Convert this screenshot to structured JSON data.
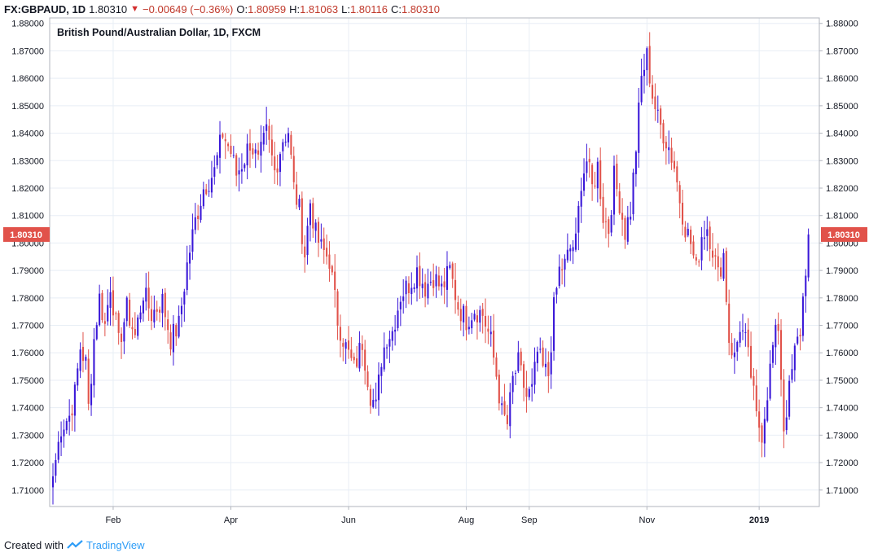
{
  "header": {
    "symbol": "FX:GBPAUD, 1D",
    "last": "1.80310",
    "change": "−0.00649 (−0.36%)",
    "o_label": "O:",
    "o_value": "1.80959",
    "h_label": "H:",
    "h_value": "1.81063",
    "l_label": "L:",
    "l_value": "1.80116",
    "c_label": "C:",
    "c_value": "1.80310"
  },
  "chart_title": "British Pound/Australian Dollar, 1D, FXCM",
  "footer": {
    "created_with": "Created with",
    "brand": "TradingView"
  },
  "colors": {
    "up": "#3a18d8",
    "down": "#e1524a",
    "grid": "#e8eef5",
    "axis_text": "#131722",
    "price_tag": "#e1524a"
  },
  "chart_data": {
    "type": "candlestick",
    "title": "British Pound/Australian Dollar, 1D, FXCM",
    "price_tag": "1.80310",
    "ylim": [
      1.704,
      1.882
    ],
    "y_ticks": [
      "1.71000",
      "1.72000",
      "1.73000",
      "1.74000",
      "1.75000",
      "1.76000",
      "1.77000",
      "1.78000",
      "1.79000",
      "1.80000",
      "1.81000",
      "1.82000",
      "1.83000",
      "1.84000",
      "1.85000",
      "1.86000",
      "1.87000",
      "1.88000"
    ],
    "x_ticks": [
      {
        "label": "Feb",
        "idx": 22,
        "bold": false
      },
      {
        "label": "Apr",
        "idx": 65,
        "bold": false
      },
      {
        "label": "Jun",
        "idx": 108,
        "bold": false
      },
      {
        "label": "Aug",
        "idx": 151,
        "bold": false
      },
      {
        "label": "Sep",
        "idx": 174,
        "bold": false
      },
      {
        "label": "Nov",
        "idx": 217,
        "bold": false
      },
      {
        "label": "2019",
        "idx": 258,
        "bold": true
      }
    ],
    "grid": true,
    "n_bars": 277,
    "close_anchors": [
      [
        0,
        1.715
      ],
      [
        3,
        1.733
      ],
      [
        6,
        1.737
      ],
      [
        8,
        1.745
      ],
      [
        10,
        1.762
      ],
      [
        12,
        1.756
      ],
      [
        13,
        1.74
      ],
      [
        15,
        1.765
      ],
      [
        17,
        1.78
      ],
      [
        19,
        1.77
      ],
      [
        21,
        1.785
      ],
      [
        24,
        1.763
      ],
      [
        27,
        1.776
      ],
      [
        30,
        1.766
      ],
      [
        33,
        1.782
      ],
      [
        36,
        1.774
      ],
      [
        40,
        1.779
      ],
      [
        43,
        1.765
      ],
      [
        46,
        1.77
      ],
      [
        49,
        1.792
      ],
      [
        52,
        1.808
      ],
      [
        55,
        1.82
      ],
      [
        59,
        1.826
      ],
      [
        62,
        1.84
      ],
      [
        65,
        1.833
      ],
      [
        67,
        1.825
      ],
      [
        70,
        1.831
      ],
      [
        72,
        1.837
      ],
      [
        75,
        1.829
      ],
      [
        78,
        1.84
      ],
      [
        81,
        1.826
      ],
      [
        84,
        1.838
      ],
      [
        86,
        1.841
      ],
      [
        88,
        1.82
      ],
      [
        90,
        1.812
      ],
      [
        92,
        1.796
      ],
      [
        94,
        1.815
      ],
      [
        96,
        1.803
      ],
      [
        98,
        1.798
      ],
      [
        101,
        1.794
      ],
      [
        104,
        1.772
      ],
      [
        107,
        1.762
      ],
      [
        110,
        1.754
      ],
      [
        113,
        1.764
      ],
      [
        116,
        1.745
      ],
      [
        118,
        1.74
      ],
      [
        120,
        1.758
      ],
      [
        122,
        1.766
      ],
      [
        124,
        1.768
      ],
      [
        127,
        1.781
      ],
      [
        130,
        1.785
      ],
      [
        133,
        1.79
      ],
      [
        136,
        1.784
      ],
      [
        139,
        1.788
      ],
      [
        142,
        1.783
      ],
      [
        145,
        1.79
      ],
      [
        148,
        1.777
      ],
      [
        151,
        1.772
      ],
      [
        154,
        1.776
      ],
      [
        157,
        1.774
      ],
      [
        160,
        1.764
      ],
      [
        162,
        1.752
      ],
      [
        164,
        1.738
      ],
      [
        166,
        1.734
      ],
      [
        168,
        1.75
      ],
      [
        170,
        1.756
      ],
      [
        173,
        1.744
      ],
      [
        175,
        1.746
      ],
      [
        177,
        1.76
      ],
      [
        179,
        1.754
      ],
      [
        181,
        1.752
      ],
      [
        183,
        1.776
      ],
      [
        185,
        1.79
      ],
      [
        187,
        1.792
      ],
      [
        189,
        1.798
      ],
      [
        191,
        1.8
      ],
      [
        193,
        1.823
      ],
      [
        195,
        1.83
      ],
      [
        197,
        1.82
      ],
      [
        199,
        1.828
      ],
      [
        201,
        1.81
      ],
      [
        203,
        1.805
      ],
      [
        205,
        1.824
      ],
      [
        207,
        1.815
      ],
      [
        209,
        1.804
      ],
      [
        211,
        1.812
      ],
      [
        213,
        1.835
      ],
      [
        215,
        1.86
      ],
      [
        217,
        1.868
      ],
      [
        219,
        1.854
      ],
      [
        221,
        1.845
      ],
      [
        223,
        1.84
      ],
      [
        225,
        1.835
      ],
      [
        227,
        1.828
      ],
      [
        229,
        1.816
      ],
      [
        231,
        1.806
      ],
      [
        233,
        1.8
      ],
      [
        235,
        1.79
      ],
      [
        237,
        1.803
      ],
      [
        239,
        1.806
      ],
      [
        241,
        1.798
      ],
      [
        243,
        1.788
      ],
      [
        245,
        1.796
      ],
      [
        247,
        1.765
      ],
      [
        249,
        1.758
      ],
      [
        251,
        1.77
      ],
      [
        253,
        1.764
      ],
      [
        255,
        1.752
      ],
      [
        257,
        1.736
      ],
      [
        259,
        1.731
      ],
      [
        261,
        1.746
      ],
      [
        263,
        1.762
      ],
      [
        265,
        1.77
      ],
      [
        267,
        1.733
      ],
      [
        269,
        1.746
      ],
      [
        271,
        1.76
      ],
      [
        273,
        1.768
      ],
      [
        276,
        1.8031
      ]
    ]
  }
}
